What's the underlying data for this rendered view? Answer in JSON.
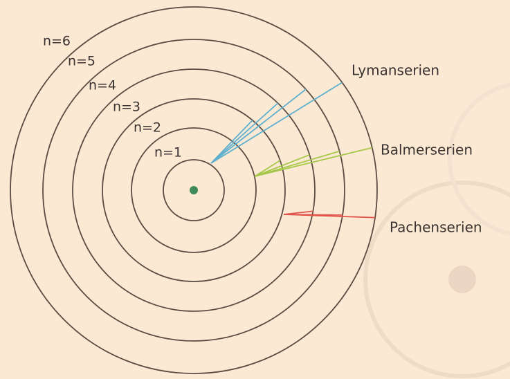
{
  "levels": [
    "n=1",
    "n=2",
    "n=3",
    "n=4",
    "n=5",
    "n=6"
  ],
  "series": [
    "Lymanserien",
    "Balmerserien",
    "Pachenserien"
  ]
}
